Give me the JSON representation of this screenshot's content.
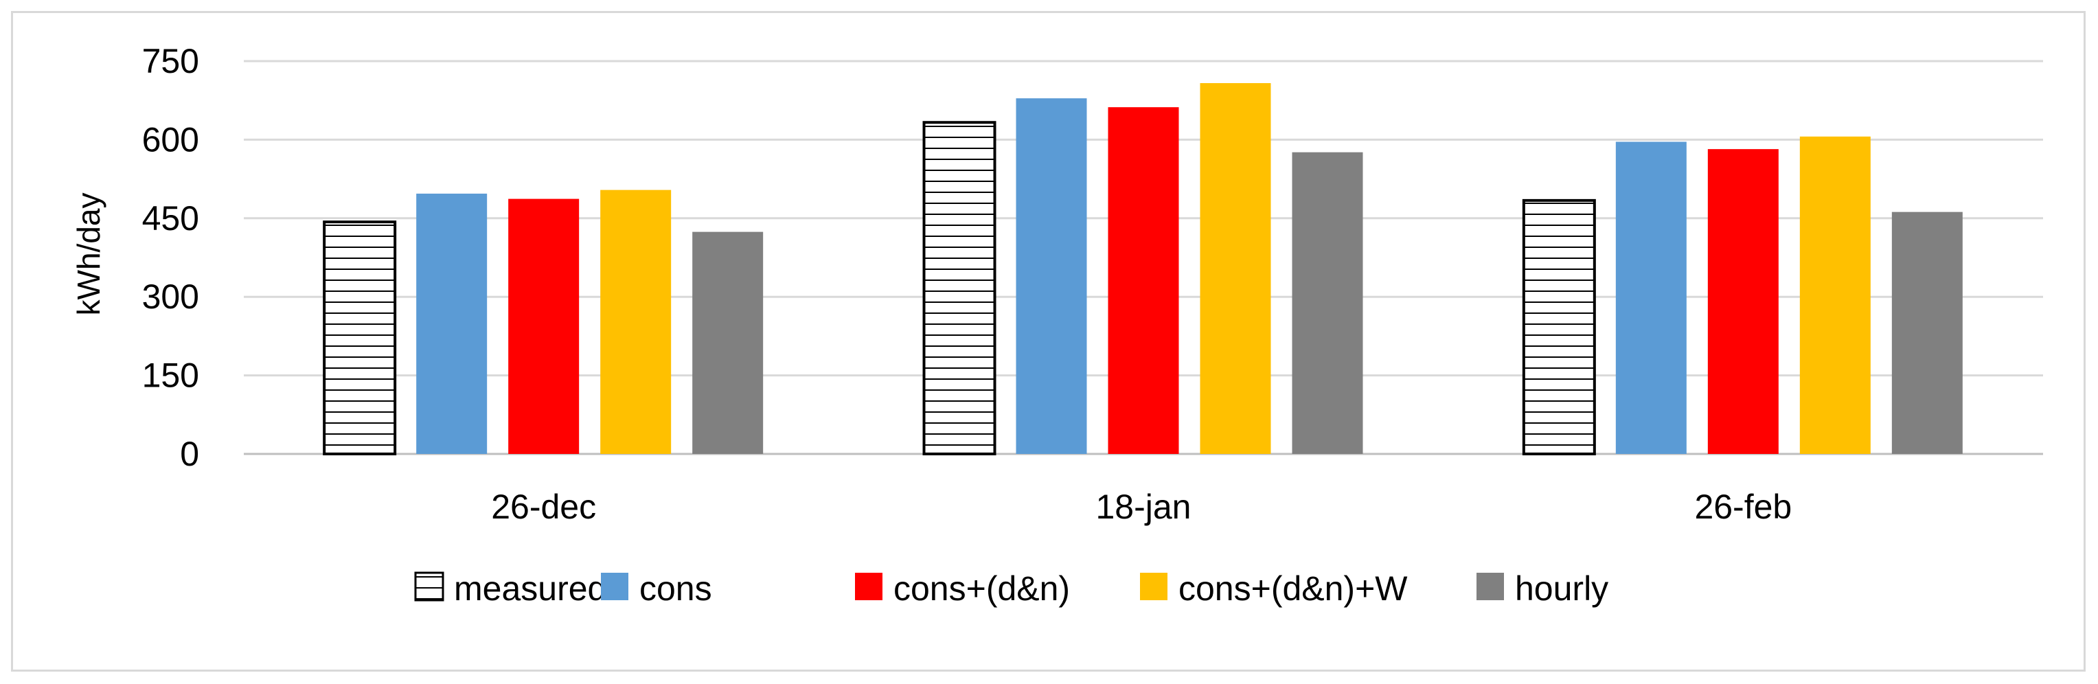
{
  "chart_data": {
    "type": "bar",
    "title": "",
    "xlabel": "",
    "ylabel": "kWh/day",
    "ylim": [
      0,
      750
    ],
    "yticks": [
      0,
      150,
      300,
      450,
      600,
      750
    ],
    "grid": true,
    "legend_position": "bottom",
    "categories": [
      "26-dec",
      "18-jan",
      "26-feb"
    ],
    "series": [
      {
        "name": "measured",
        "values": [
          443,
          633,
          484
        ],
        "color": "#ffffff",
        "pattern": "horizontal-lines"
      },
      {
        "name": "cons",
        "values": [
          497,
          679,
          596
        ],
        "color": "#5b9bd5"
      },
      {
        "name": "cons+(d&n)",
        "values": [
          487,
          662,
          582
        ],
        "color": "#ff0000"
      },
      {
        "name": "cons+(d&n)+W",
        "values": [
          504,
          708,
          606
        ],
        "color": "#ffc000"
      },
      {
        "name": "hourly",
        "values": [
          424,
          576,
          462
        ],
        "color": "#808080"
      }
    ]
  }
}
